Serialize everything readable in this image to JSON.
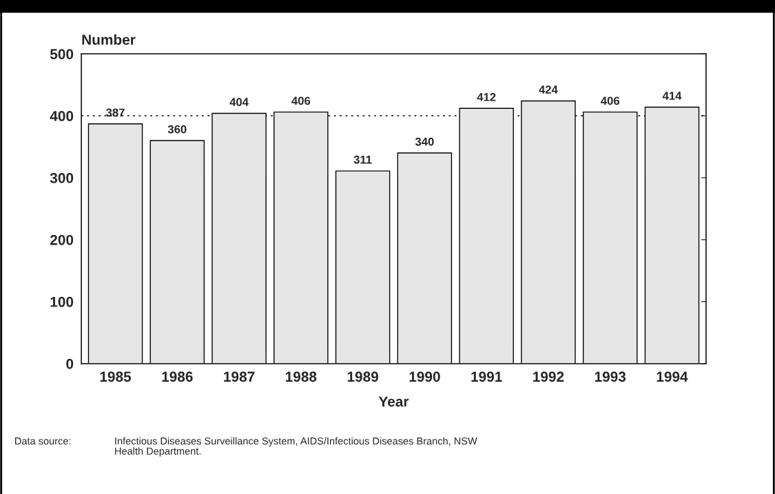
{
  "chart_data": {
    "type": "bar",
    "categories": [
      "1985",
      "1986",
      "1987",
      "1988",
      "1989",
      "1990",
      "1991",
      "1992",
      "1993",
      "1994"
    ],
    "values": [
      387,
      360,
      404,
      406,
      311,
      340,
      412,
      424,
      406,
      414
    ],
    "color": "#e6e6e6",
    "ylabel": "Number",
    "xlabel": "Year",
    "ylim": [
      0,
      500
    ],
    "yticks": [
      0,
      100,
      200,
      300,
      400,
      500
    ],
    "data_labels": true,
    "grid": false,
    "legend": false,
    "ref_lines": [
      {
        "axis": "y",
        "value": 400,
        "line_style": "dotted",
        "color": "#000000"
      }
    ],
    "annotations": [
      "Data source:",
      "Infectious Diseases Surveillance System, AIDS/Infectious Diseases Branch, NSW\nHealth Department."
    ]
  }
}
